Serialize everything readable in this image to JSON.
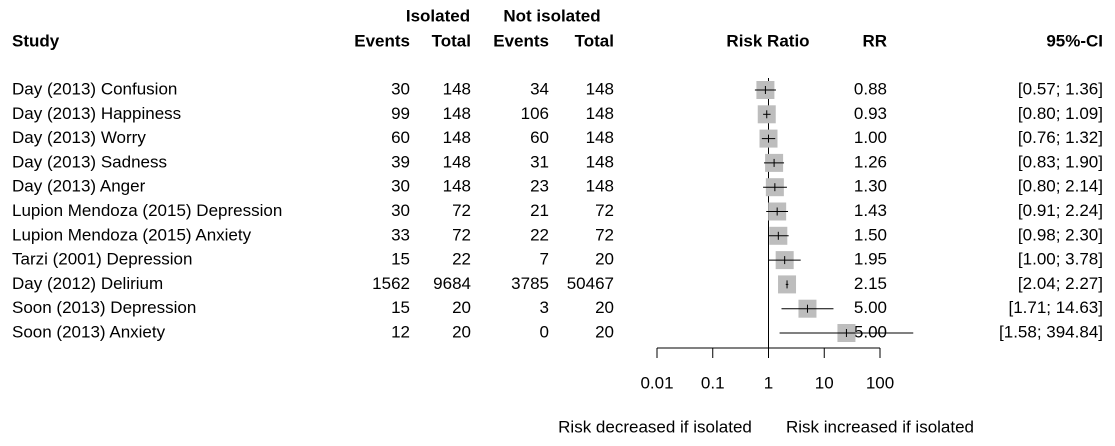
{
  "chart_data": {
    "type": "forest",
    "headers": {
      "study": "Study",
      "group1": "Isolated",
      "group2": "Not isolated",
      "events": "Events",
      "total": "Total",
      "plot": "Risk Ratio",
      "rr": "RR",
      "ci": "95%-CI"
    },
    "studies": [
      "Day (2013) Confusion",
      "Day (2013) Happiness",
      "Day (2013) Worry",
      "Day (2013) Sadness",
      "Day (2013) Anger",
      "Lupion Mendoza (2015) Depression",
      "Lupion Mendoza (2015) Anxiety",
      "Tarzi (2001) Depression",
      "Day (2012) Delirium",
      "Soon (2013) Depression",
      "Soon (2013) Anxiety"
    ],
    "events1": [
      30,
      99,
      60,
      39,
      30,
      30,
      33,
      15,
      1562,
      15,
      12
    ],
    "total1": [
      148,
      148,
      148,
      148,
      148,
      72,
      72,
      22,
      9684,
      20,
      20
    ],
    "events2": [
      34,
      106,
      60,
      31,
      23,
      21,
      22,
      7,
      3785,
      3,
      0
    ],
    "total2": [
      148,
      148,
      148,
      148,
      148,
      72,
      72,
      20,
      50467,
      20,
      20
    ],
    "values": [
      0.88,
      0.93,
      1.0,
      1.26,
      1.3,
      1.43,
      1.5,
      1.95,
      2.15,
      5.0,
      25.0
    ],
    "value_labels": [
      "0.88",
      "0.93",
      "1.00",
      "1.26",
      "1.30",
      "1.43",
      "1.50",
      "1.95",
      "2.15",
      "5.00",
      "25.00"
    ],
    "ci_lower": [
      0.57,
      0.8,
      0.76,
      0.83,
      0.8,
      0.91,
      0.98,
      1.0,
      2.04,
      1.71,
      1.58
    ],
    "ci_upper": [
      1.36,
      1.09,
      1.32,
      1.9,
      2.14,
      2.24,
      2.3,
      3.78,
      2.27,
      14.63,
      394.84
    ],
    "ci_labels": [
      "[0.57; 1.36]",
      "[0.80; 1.09]",
      "[0.76; 1.32]",
      "[0.83; 1.90]",
      "[0.80; 2.14]",
      "[0.91; 2.24]",
      "[0.98; 2.30]",
      "[1.00; 3.78]",
      "[2.04; 2.27]",
      "[1.71; 14.63]",
      "[1.58; 394.84]"
    ],
    "xlim": [
      0.01,
      100
    ],
    "xticks": [
      0.01,
      0.1,
      1,
      10,
      100
    ],
    "log_x": true,
    "xlabel_left": "Risk decreased if isolated",
    "xlabel_right": "Risk increased if isolated",
    "square_color": "#bdbdbd",
    "line_color": "#000000"
  }
}
